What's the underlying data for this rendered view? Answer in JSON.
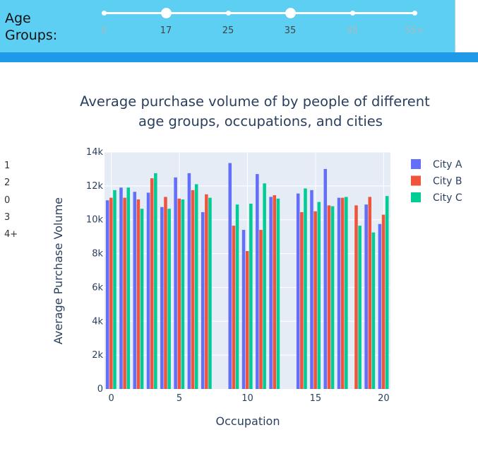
{
  "header": {
    "age_label_line1": "Age",
    "age_label_line2": "Groups:"
  },
  "age_slider": {
    "marks": [
      "0",
      "17",
      "25",
      "35",
      "45",
      "55+"
    ],
    "selected_range": [
      "17",
      "35"
    ],
    "track_color": "#ffffff",
    "background_color": "#5ccff3"
  },
  "side_options": [
    "1",
    "2",
    "0",
    "3",
    "4+"
  ],
  "chart_data": {
    "type": "bar",
    "title_line1": "Average purchase volume of by people of different",
    "title_line2": "age groups, occupations, and cities",
    "xlabel": "Occupation",
    "ylabel": "Average Purchase Volume",
    "x": [
      0,
      1,
      2,
      3,
      4,
      5,
      6,
      7,
      8,
      9,
      10,
      11,
      12,
      13,
      14,
      15,
      16,
      17,
      18,
      19,
      20
    ],
    "xlim": [
      -0.5,
      20.5
    ],
    "ylim": [
      0,
      14000
    ],
    "x_ticks": [
      0,
      5,
      10,
      15,
      20
    ],
    "x_tick_labels": [
      "0",
      "5",
      "10",
      "15",
      "20"
    ],
    "y_ticks": [
      0,
      2000,
      4000,
      6000,
      8000,
      10000,
      12000,
      14000
    ],
    "y_tick_labels": [
      "0",
      "2k",
      "4k",
      "6k",
      "8k",
      "10k",
      "12k",
      "14k"
    ],
    "grid": true,
    "legend_position": "top-right",
    "series": [
      {
        "name": "City A",
        "color": "#636efa",
        "values": [
          11150,
          11900,
          11650,
          11600,
          10750,
          12500,
          12750,
          10450,
          null,
          13350,
          9400,
          12700,
          11350,
          null,
          11550,
          11750,
          13000,
          11300,
          null,
          10900,
          9750
        ]
      },
      {
        "name": "City B",
        "color": "#ef553b",
        "values": [
          11300,
          11300,
          11200,
          12450,
          11350,
          11250,
          11750,
          11500,
          null,
          9650,
          8150,
          9400,
          11450,
          null,
          10450,
          10500,
          10850,
          11300,
          10850,
          11350,
          10300
        ]
      },
      {
        "name": "City C",
        "color": "#00cc96",
        "values": [
          11750,
          11900,
          10650,
          12750,
          10650,
          11200,
          12100,
          11300,
          null,
          10900,
          10950,
          12150,
          11250,
          null,
          11850,
          11050,
          10800,
          11350,
          9650,
          9250,
          11400
        ]
      }
    ]
  }
}
